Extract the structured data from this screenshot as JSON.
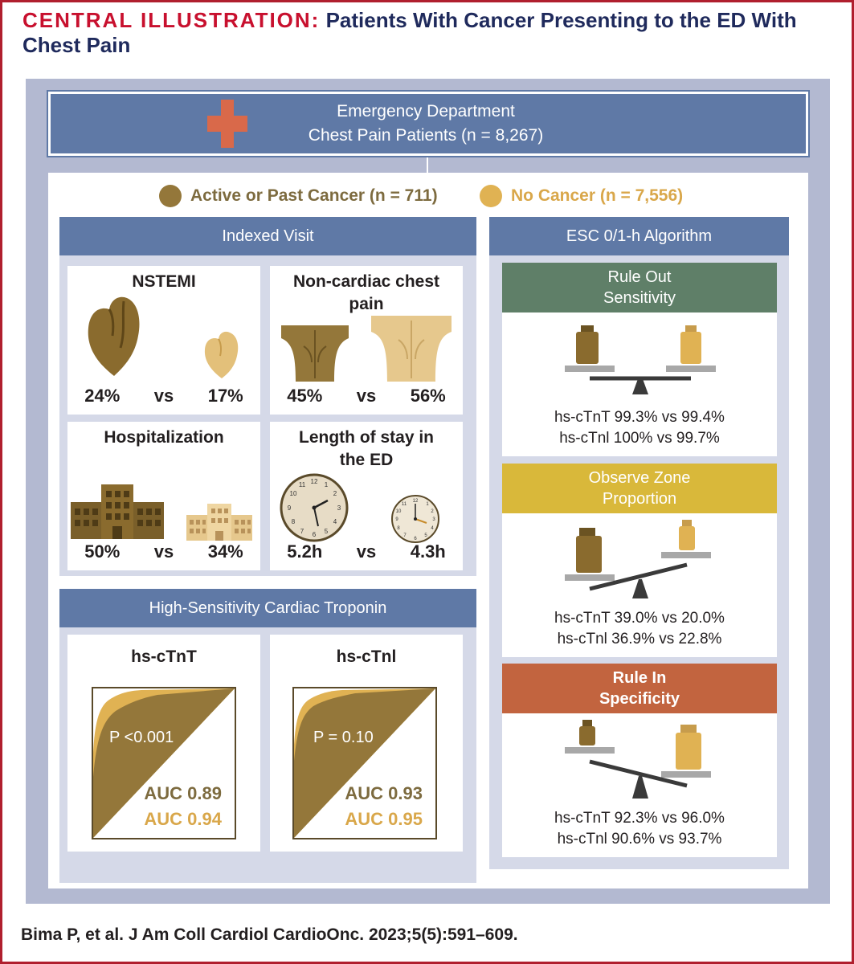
{
  "title": {
    "tag": "CENTRAL ILLUSTRATION:",
    "text": "Patients With Cancer Presenting to the ED With Chest Pain"
  },
  "header": {
    "line1": "Emergency Department",
    "line2": "Chest Pain Patients (n = 8,267)"
  },
  "legend": [
    {
      "label": "Active or Past Cancer (n = 711)",
      "color": "#94773a"
    },
    {
      "label": "No Cancer (n = 7,556)",
      "color": "#e0b253"
    }
  ],
  "indexed_visit": {
    "heading": "Indexed Visit",
    "cells": [
      {
        "label": "NSTEMI",
        "a": "24%",
        "vs": "vs",
        "b": "17%"
      },
      {
        "label": "Non-cardiac chest pain",
        "a": "45%",
        "vs": "vs",
        "b": "56%"
      },
      {
        "label": "Hospitalization",
        "a": "50%",
        "vs": "vs",
        "b": "34%"
      },
      {
        "label": "Length of stay in the ED",
        "a": "5.2h",
        "vs": "vs",
        "b": "4.3h"
      }
    ]
  },
  "troponin": {
    "heading": "High-Sensitivity Cardiac Troponin",
    "plots": [
      {
        "label": "hs-cTnT",
        "p": "P <0.001",
        "auc1": "AUC 0.89",
        "auc2": "AUC 0.94"
      },
      {
        "label": "hs-cTnl",
        "p": "P = 0.10",
        "auc1": "AUC 0.93",
        "auc2": "AUC 0.95"
      }
    ]
  },
  "esc": {
    "heading": "ESC 0/1-h Algorithm",
    "sections": [
      {
        "title1": "Rule Out",
        "title2": "Sensitivity",
        "color": "#5f7f68",
        "line1": "hs-cTnT 99.3% vs 99.4%",
        "line2": "hs-cTnl 100% vs 99.7%"
      },
      {
        "title1": "Observe Zone",
        "title2": "Proportion",
        "color": "#d9b83a",
        "line1": "hs-cTnT 39.0% vs 20.0%",
        "line2": "hs-cTnl 36.9% vs 22.8%"
      },
      {
        "title1": "Rule In",
        "title2": "Specificity",
        "color": "#c2643f",
        "line1": "hs-cTnT 92.3% vs 96.0%",
        "line2": "hs-cTnl 90.6% vs 93.7%"
      }
    ]
  },
  "citation": "Bima P, et al. J Am Coll Cardiol CardioOnc. 2023;5(5):591–609."
}
